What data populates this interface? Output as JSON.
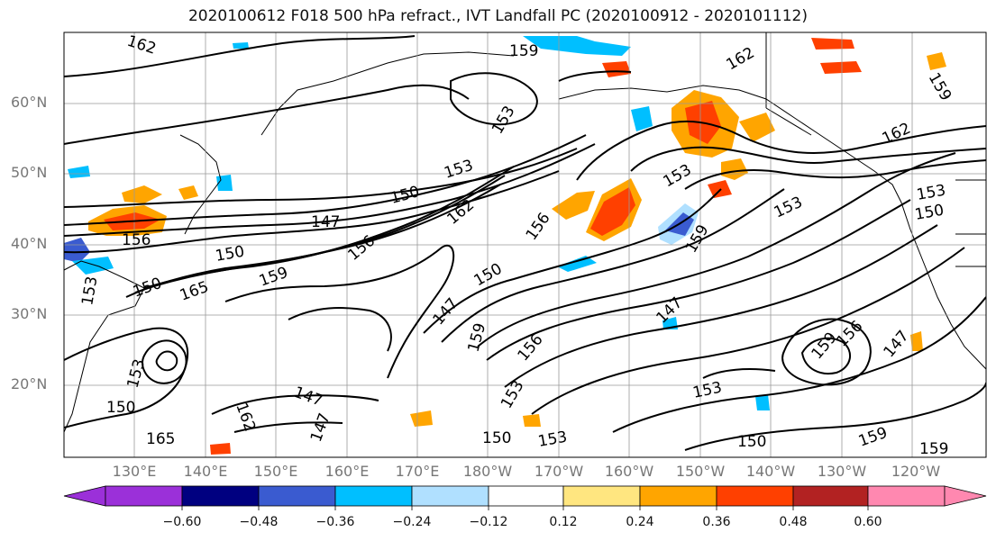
{
  "title": "2020100612 F018 500 hPa refract., IVT Landfall PC (2020100912 - 2020101112)",
  "latitude_labels": [
    "60°N",
    "50°N",
    "40°N",
    "30°N",
    "20°N"
  ],
  "longitude_labels": [
    "130°E",
    "140°E",
    "150°E",
    "160°E",
    "170°E",
    "180°W",
    "170°W",
    "160°W",
    "150°W",
    "140°W",
    "130°W",
    "120°W"
  ],
  "contour_labels": [
    "162",
    "159",
    "162",
    "159",
    "153",
    "153",
    "150",
    "147",
    "156",
    "162",
    "156",
    "150",
    "153",
    "159",
    "153",
    "150",
    "153",
    "150",
    "156",
    "165",
    "159",
    "153",
    "162",
    "147",
    "150",
    "159",
    "156",
    "147",
    "153",
    "147",
    "150",
    "153",
    "165",
    "162",
    "147",
    "150",
    "153",
    "159",
    "147",
    "156",
    "153",
    "150",
    "159",
    "159"
  ],
  "colorbar": {
    "tick_labels": [
      "−0.60",
      "−0.48",
      "−0.36",
      "−0.24",
      "−0.12",
      "0.12",
      "0.24",
      "0.36",
      "0.48",
      "0.60"
    ],
    "colors": [
      "#9b30d9",
      "#000080",
      "#3a5bd0",
      "#00bfff",
      "#b0e0ff",
      "#ffffff",
      "#ffe680",
      "#ffa500",
      "#ff4000",
      "#b22222",
      "#ff88b0"
    ]
  },
  "shading": {
    "positive_colors": [
      "#ffe680",
      "#ffa500",
      "#ff4000",
      "#b22222"
    ],
    "negative_colors": [
      "#b0e0ff",
      "#00bfff",
      "#3a5bd0"
    ]
  }
}
